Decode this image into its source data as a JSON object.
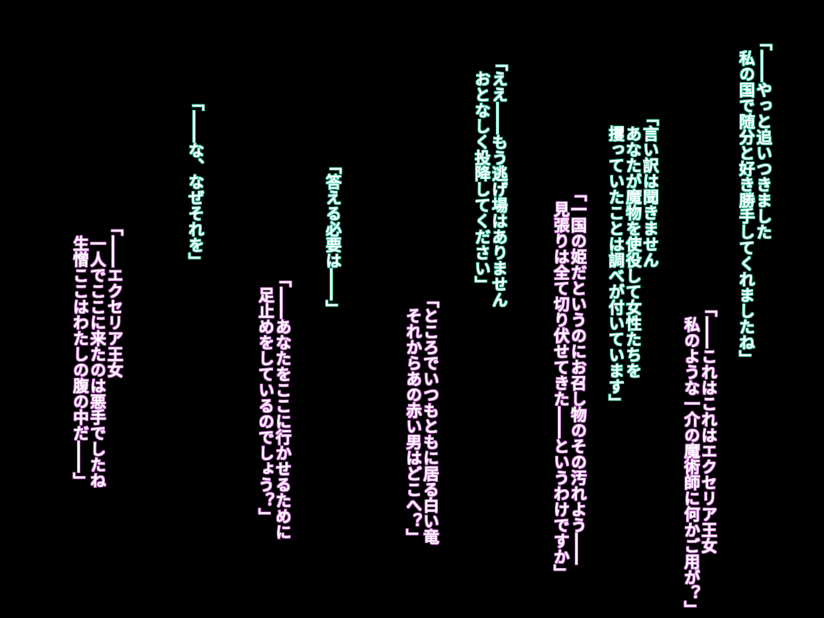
{
  "dialogue": [
    {
      "lines": [
        "「――やっと追いつきました",
        "私の国で随分と好き勝手してくれましたね」"
      ]
    },
    {
      "lines": [
        "「言い訳は聞きません",
        "あなたが魔物を使役して女性たちを",
        "攫っていたことは調べが付いています」"
      ]
    },
    {
      "lines": [
        "「――これはこれはエクセリア王女",
        "私のような一介の魔術師に何かご用が？」"
      ]
    },
    {
      "lines": [
        "「ええ――もう逃げ場はありません",
        "おとなしく投降してください」"
      ]
    },
    {
      "lines": [
        "「一国の姫だというのにお召し物のその汚れよう――",
        "見張りは全て切り伏せてきた――というわけですか」"
      ]
    },
    {
      "lines": [
        "「ところでいつもともに居る白い竜",
        "それからあの赤い男はどこへ？」"
      ]
    },
    {
      "lines": [
        "「答える必要は――」"
      ]
    },
    {
      "lines": [
        "「――あなたをここに行かせるために",
        "足止めをしているのでしょう？」"
      ]
    },
    {
      "lines": [
        "「――な、なぜそれを」"
      ]
    },
    {
      "lines": [
        "「――エクセリア王女",
        "一人でここに来たのは悪手でしたね",
        "生憎ここはわたしの腹の中だ――」"
      ]
    }
  ]
}
